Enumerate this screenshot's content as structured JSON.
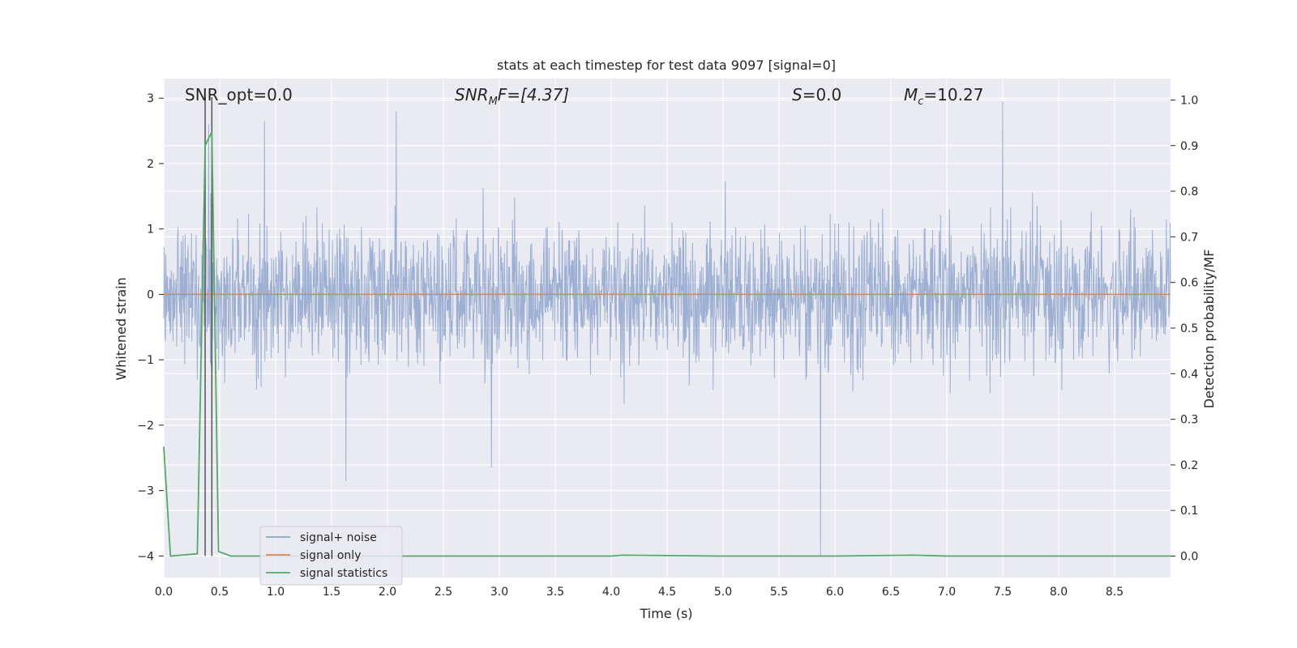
{
  "chart_data": {
    "type": "line",
    "title": "stats at each timestep for test data 9097 [signal=0]",
    "xlabel": "Time (s)",
    "ylabel": "Whitened strain",
    "y2label": "Detection probability/MF",
    "xlim": [
      0.0,
      9.0
    ],
    "ylim": [
      -4.33,
      3.3
    ],
    "y2lim": [
      -0.047,
      1.047
    ],
    "x_ticks": [
      "0.0",
      "0.5",
      "1.0",
      "1.5",
      "2.0",
      "2.5",
      "3.0",
      "3.5",
      "4.0",
      "4.5",
      "5.0",
      "5.5",
      "6.0",
      "6.5",
      "7.0",
      "7.5",
      "8.0",
      "8.5"
    ],
    "y_ticks": [
      "3",
      "2",
      "1",
      "0",
      "−1",
      "−2",
      "−3",
      "−4"
    ],
    "y2_ticks": [
      "1.0",
      "0.9",
      "0.8",
      "0.7",
      "0.6",
      "0.5",
      "0.4",
      "0.3",
      "0.2",
      "0.1",
      "0.0"
    ],
    "grid": true,
    "legend_position": "lower-left",
    "annotations": {
      "snr_opt": "SNR_opt=0.0",
      "snr_mf_main": "SNR",
      "snr_mf_sub": "M",
      "snr_mf_rest": "F=[4.37]",
      "s_main": "S",
      "s_rest": "=0.0",
      "mc_main": "M",
      "mc_sub": "c",
      "mc_rest": "=10.27"
    },
    "series": [
      {
        "name": "signal+ noise",
        "color": "#8fa4cc",
        "description_values": {
          "x_range": [
            0.0,
            9.0
          ],
          "typical_amplitude": 1.0,
          "peaks": [
            {
              "x": 0.4,
              "y": 2.6
            },
            {
              "x": 0.9,
              "y": 2.65
            },
            {
              "x": 2.08,
              "y": 2.8
            },
            {
              "x": 7.5,
              "y": 2.95
            },
            {
              "x": 1.63,
              "y": -2.85
            },
            {
              "x": 5.87,
              "y": -4.0
            },
            {
              "x": 2.93,
              "y": -2.65
            }
          ]
        }
      },
      {
        "name": "signal only",
        "color": "#dd8452",
        "x": [
          0.0,
          9.0
        ],
        "y": [
          0.0,
          0.0
        ]
      },
      {
        "name": "signal statistics",
        "color": "#55a868",
        "axis": "right",
        "x": [
          0.0,
          0.06,
          0.3,
          0.37,
          0.43,
          0.49,
          0.6,
          1.0,
          2.0,
          3.0,
          4.0,
          4.1,
          5.0,
          6.0,
          6.7,
          7.0,
          8.0,
          9.0
        ],
        "y": [
          0.24,
          0.0,
          0.005,
          0.9,
          0.93,
          0.01,
          0.0,
          0.0,
          0.0,
          0.0,
          0.0,
          0.002,
          0.0,
          0.0,
          0.002,
          0.0,
          0.0,
          0.0
        ]
      }
    ],
    "vlines": [
      0.37,
      0.43
    ]
  }
}
